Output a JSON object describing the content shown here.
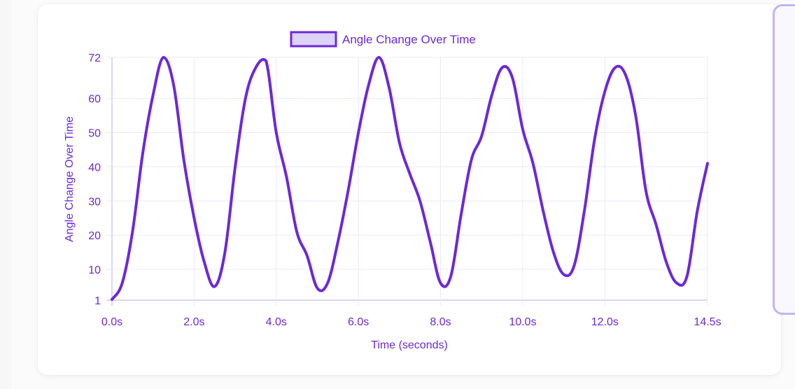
{
  "chart_data": {
    "type": "line",
    "title": "",
    "legend": {
      "entries": [
        "Angle Change Over Time"
      ],
      "position": "top"
    },
    "xlabel": "Time (seconds)",
    "ylabel": "Angle Change Over Time",
    "x_ticks": [
      "0.0s",
      "2.0s",
      "4.0s",
      "6.0s",
      "8.0s",
      "10.0s",
      "12.0s",
      "14.5s"
    ],
    "x_tick_values": [
      0,
      2,
      4,
      6,
      8,
      10,
      12,
      14.5
    ],
    "y_ticks": [
      1,
      10,
      20,
      30,
      40,
      50,
      60,
      72
    ],
    "xlim": [
      0,
      14.5
    ],
    "ylim": [
      1,
      72
    ],
    "grid": true,
    "series": [
      {
        "name": "Angle Change Over Time",
        "color": "#6d28d9",
        "x": [
          0,
          0.25,
          0.5,
          0.75,
          1.0,
          1.25,
          1.5,
          1.75,
          2.0,
          2.25,
          2.5,
          2.75,
          3.0,
          3.25,
          3.5,
          3.75,
          4.0,
          4.25,
          4.5,
          4.75,
          5.0,
          5.25,
          5.5,
          5.75,
          6.0,
          6.25,
          6.5,
          6.75,
          7.0,
          7.25,
          7.5,
          7.75,
          8.0,
          8.25,
          8.5,
          8.75,
          9.0,
          9.25,
          9.5,
          9.75,
          10.0,
          10.25,
          10.5,
          10.75,
          11.0,
          11.25,
          11.5,
          11.75,
          12.0,
          12.25,
          12.5,
          12.75,
          13.0,
          13.25,
          13.5,
          13.75,
          14.0,
          14.25,
          14.5
        ],
        "values": [
          1.2,
          6,
          21,
          44,
          61,
          72,
          64,
          42,
          25,
          12,
          5,
          15,
          40,
          60,
          69,
          71,
          50,
          37,
          21,
          14,
          4.5,
          6,
          18,
          33,
          50,
          64,
          72,
          63,
          47,
          38,
          30,
          18,
          6,
          8,
          26,
          42,
          49,
          61,
          69,
          66,
          51,
          41,
          27,
          15,
          8.5,
          11,
          27,
          48,
          62,
          69,
          67,
          55,
          33,
          23,
          12,
          6,
          8,
          27,
          41
        ]
      }
    ]
  },
  "colors": {
    "line": "#6d28d9",
    "text": "#6d28d9",
    "grid": "#ece8fb",
    "legend_fill": "#ddd3f7",
    "panel_border": "#c4b3f3"
  }
}
